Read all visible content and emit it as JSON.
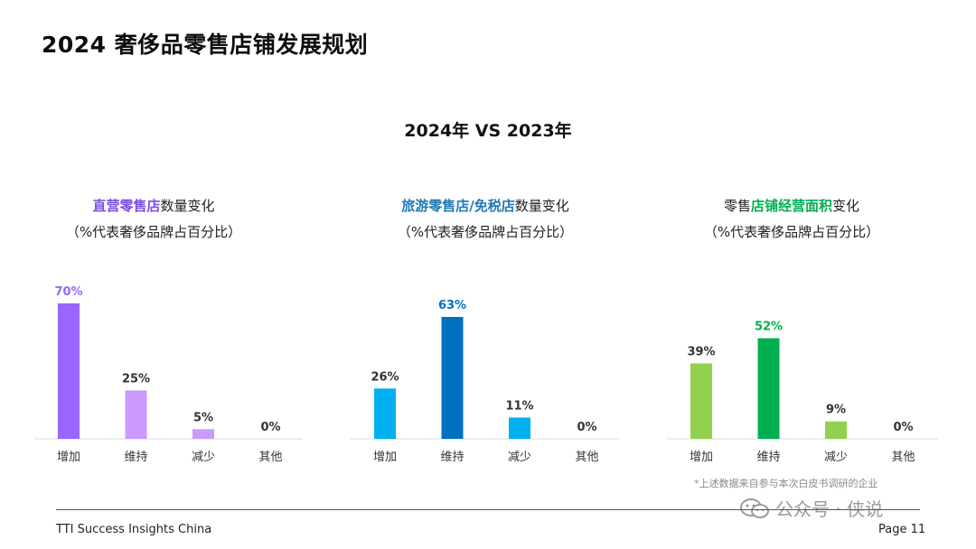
{
  "page_title": "2024 奢侈品零售店铺发展规划",
  "subtitle": "2024年 VS 2023年",
  "colors": {
    "purple_dark": "#9966ff",
    "purple_light": "#cc99ff",
    "blue_light": "#00b0f0",
    "blue_dark": "#0070c0",
    "green_light": "#92d050",
    "green_dark": "#00b050",
    "panel1_highlight": "#7b4fe0",
    "panel2_highlight": "#1f7ab5",
    "panel3_highlight": "#00b050"
  },
  "panels": [
    {
      "heading_highlight": "直营零售店",
      "heading_rest": "数量变化",
      "heading_sub": "（%代表奢侈品牌占百分比）"
    },
    {
      "heading_highlight": "旅游零售店/免税店",
      "heading_rest": "数量变化",
      "heading_sub": "（%代表奢侈品牌占百分比）"
    },
    {
      "heading_prefix": "零售",
      "heading_highlight": "店铺经营面积",
      "heading_rest": "变化",
      "heading_sub": "（%代表奢侈品牌占百分比）"
    }
  ],
  "chart_data": [
    {
      "type": "bar",
      "categories": [
        "增加",
        "维持",
        "减少",
        "其他"
      ],
      "values": [
        70,
        25,
        5,
        0
      ],
      "data_labels": [
        "70%",
        "25%",
        "5%",
        "0%"
      ],
      "bar_colors": [
        "#9966ff",
        "#cc99ff",
        "#cc99ff",
        "#cc99ff"
      ],
      "label_colors": [
        "#9966ff",
        "#333333",
        "#333333",
        "#333333"
      ],
      "ylim": [
        0,
        70
      ]
    },
    {
      "type": "bar",
      "categories": [
        "增加",
        "维持",
        "减少",
        "其他"
      ],
      "values": [
        26,
        63,
        11,
        0
      ],
      "data_labels": [
        "26%",
        "63%",
        "11%",
        "0%"
      ],
      "bar_colors": [
        "#00b0f0",
        "#0070c0",
        "#00b0f0",
        "#00b0f0"
      ],
      "label_colors": [
        "#333333",
        "#0070c0",
        "#333333",
        "#333333"
      ],
      "ylim": [
        0,
        70
      ]
    },
    {
      "type": "bar",
      "categories": [
        "增加",
        "维持",
        "减少",
        "其他"
      ],
      "values": [
        39,
        52,
        9,
        0
      ],
      "data_labels": [
        "39%",
        "52%",
        "9%",
        "0%"
      ],
      "bar_colors": [
        "#92d050",
        "#00b050",
        "#92d050",
        "#92d050"
      ],
      "label_colors": [
        "#333333",
        "#00b050",
        "#333333",
        "#333333"
      ],
      "ylim": [
        0,
        70
      ]
    }
  ],
  "footnote": "*上述数据来自参与本次白皮书调研的企业",
  "footer": {
    "left": "TTI Success Insights China",
    "right": "Page 11"
  },
  "watermark": {
    "icon": "wechat-icon",
    "text": "公众号 · 侠说"
  }
}
